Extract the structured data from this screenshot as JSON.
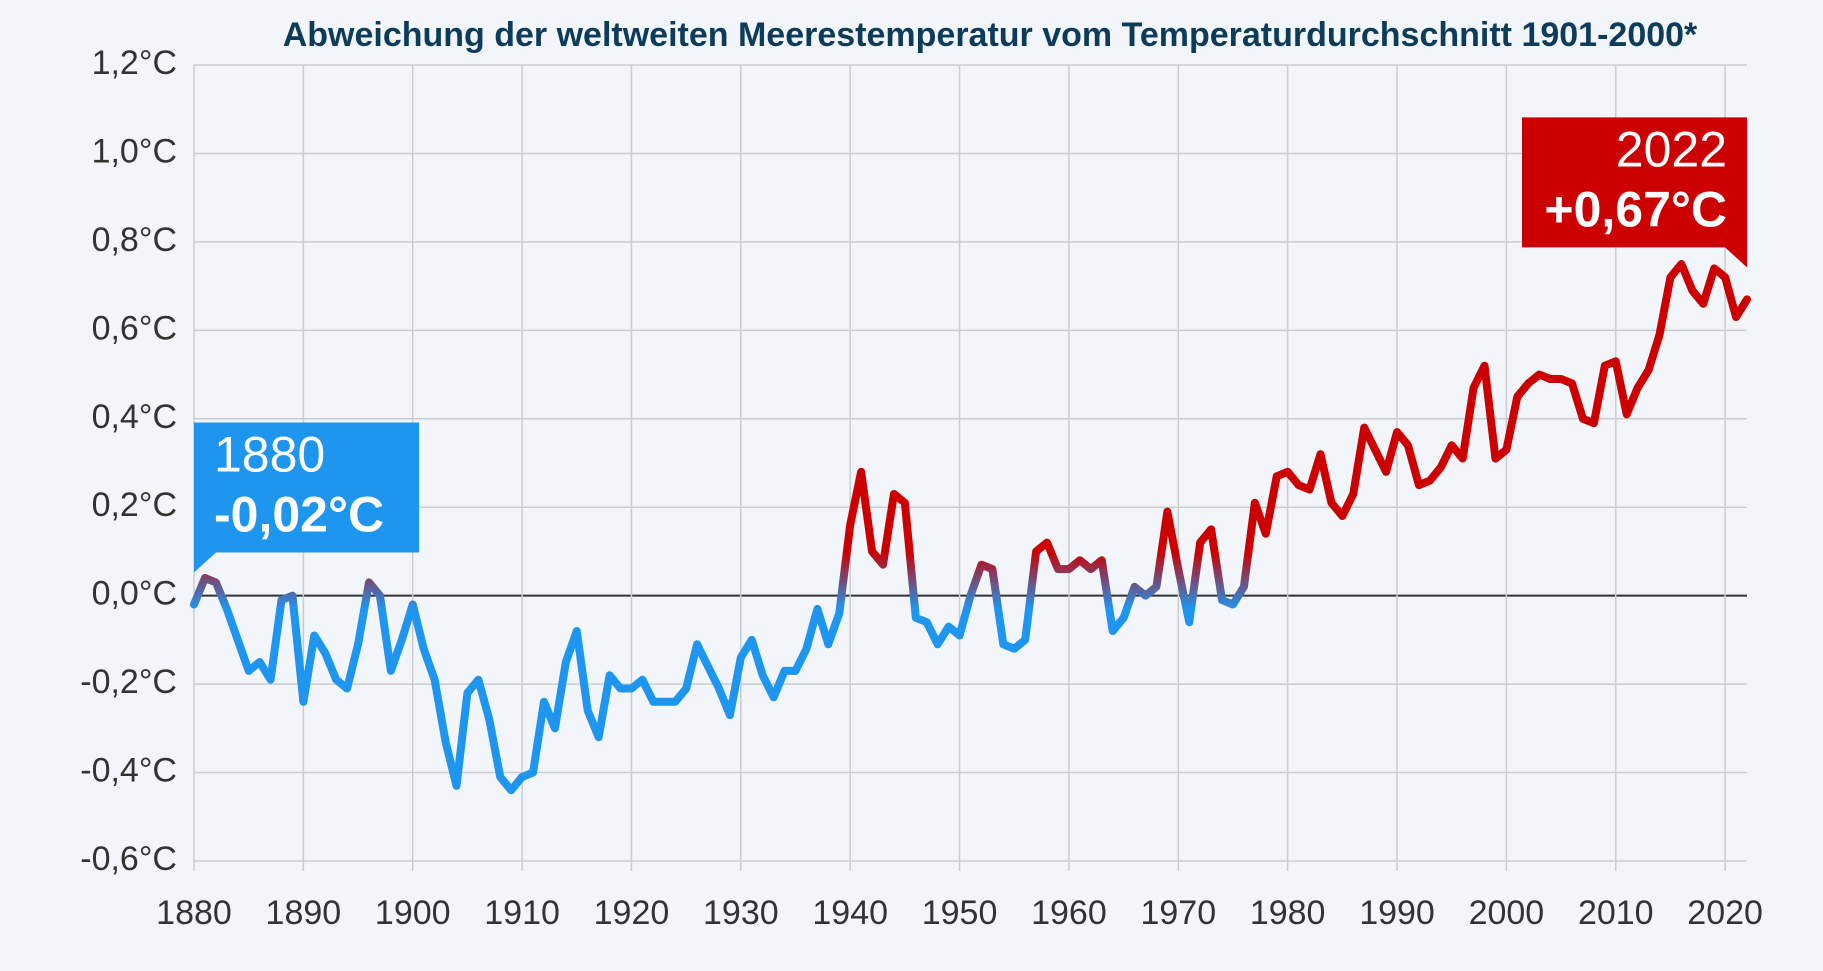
{
  "chart_data": {
    "type": "line",
    "title": "Abweichung der weltweiten Meerestemperatur vom Temperaturdurchschnitt 1901-2000*",
    "x": [
      1880,
      1881,
      1882,
      1883,
      1884,
      1885,
      1886,
      1887,
      1888,
      1889,
      1890,
      1891,
      1892,
      1893,
      1894,
      1895,
      1896,
      1897,
      1898,
      1899,
      1900,
      1901,
      1902,
      1903,
      1904,
      1905,
      1906,
      1907,
      1908,
      1909,
      1910,
      1911,
      1912,
      1913,
      1914,
      1915,
      1916,
      1917,
      1918,
      1919,
      1920,
      1921,
      1922,
      1923,
      1924,
      1925,
      1926,
      1927,
      1928,
      1929,
      1930,
      1931,
      1932,
      1933,
      1934,
      1935,
      1936,
      1937,
      1938,
      1939,
      1940,
      1941,
      1942,
      1943,
      1944,
      1945,
      1946,
      1947,
      1948,
      1949,
      1950,
      1951,
      1952,
      1953,
      1954,
      1955,
      1956,
      1957,
      1958,
      1959,
      1960,
      1961,
      1962,
      1963,
      1964,
      1965,
      1966,
      1967,
      1968,
      1969,
      1970,
      1971,
      1972,
      1973,
      1974,
      1975,
      1976,
      1977,
      1978,
      1979,
      1980,
      1981,
      1982,
      1983,
      1984,
      1985,
      1986,
      1987,
      1988,
      1989,
      1990,
      1991,
      1992,
      1993,
      1994,
      1995,
      1996,
      1997,
      1998,
      1999,
      2000,
      2001,
      2002,
      2003,
      2004,
      2005,
      2006,
      2007,
      2008,
      2009,
      2010,
      2011,
      2012,
      2013,
      2014,
      2015,
      2016,
      2017,
      2018,
      2019,
      2020,
      2021,
      2022
    ],
    "values": [
      -0.02,
      0.04,
      0.03,
      -0.03,
      -0.1,
      -0.17,
      -0.15,
      -0.19,
      -0.01,
      0.0,
      -0.24,
      -0.09,
      -0.13,
      -0.19,
      -0.21,
      -0.11,
      0.03,
      0.0,
      -0.17,
      -0.1,
      -0.02,
      -0.12,
      -0.19,
      -0.33,
      -0.43,
      -0.22,
      -0.19,
      -0.28,
      -0.41,
      -0.44,
      -0.41,
      -0.4,
      -0.24,
      -0.3,
      -0.15,
      -0.08,
      -0.26,
      -0.32,
      -0.18,
      -0.21,
      -0.21,
      -0.19,
      -0.24,
      -0.24,
      -0.24,
      -0.21,
      -0.11,
      -0.16,
      -0.21,
      -0.27,
      -0.14,
      -0.1,
      -0.18,
      -0.23,
      -0.17,
      -0.17,
      -0.12,
      -0.03,
      -0.11,
      -0.04,
      0.16,
      0.28,
      0.1,
      0.07,
      0.23,
      0.21,
      -0.05,
      -0.06,
      -0.11,
      -0.07,
      -0.09,
      0.0,
      0.07,
      0.06,
      -0.11,
      -0.12,
      -0.1,
      0.1,
      0.12,
      0.06,
      0.06,
      0.08,
      0.06,
      0.08,
      -0.08,
      -0.05,
      0.02,
      0.0,
      0.02,
      0.19,
      0.06,
      -0.06,
      0.12,
      0.15,
      -0.01,
      -0.02,
      0.02,
      0.21,
      0.14,
      0.27,
      0.28,
      0.25,
      0.24,
      0.32,
      0.21,
      0.18,
      0.23,
      0.38,
      0.33,
      0.28,
      0.37,
      0.34,
      0.25,
      0.26,
      0.29,
      0.34,
      0.31,
      0.47,
      0.52,
      0.31,
      0.33,
      0.45,
      0.48,
      0.5,
      0.49,
      0.49,
      0.48,
      0.4,
      0.39,
      0.52,
      0.53,
      0.41,
      0.47,
      0.51,
      0.59,
      0.72,
      0.75,
      0.69,
      0.66,
      0.74,
      0.72,
      0.63,
      0.67
    ],
    "value_labels": [
      "-0,02°C",
      null,
      null,
      null,
      null,
      null,
      null,
      null,
      null,
      null,
      null,
      null,
      null,
      null,
      null,
      null,
      null,
      null,
      null,
      null,
      null,
      null,
      null,
      null,
      null,
      null,
      null,
      null,
      null,
      null,
      null,
      null,
      null,
      null,
      null,
      null,
      null,
      null,
      null,
      null,
      null,
      null,
      null,
      null,
      null,
      null,
      null,
      null,
      null,
      null,
      null,
      null,
      null,
      null,
      null,
      null,
      null,
      null,
      null,
      null,
      null,
      null,
      null,
      null,
      null,
      null,
      null,
      null,
      null,
      null,
      null,
      null,
      null,
      null,
      null,
      null,
      null,
      null,
      null,
      null,
      null,
      null,
      null,
      null,
      null,
      null,
      null,
      null,
      null,
      null,
      null,
      null,
      null,
      null,
      null,
      null,
      null,
      null,
      null,
      null,
      null,
      null,
      null,
      null,
      null,
      null,
      null,
      null,
      null,
      null,
      null,
      null,
      null,
      null,
      null,
      null,
      null,
      null,
      null,
      null,
      null,
      null,
      null,
      null,
      null,
      null,
      null,
      null,
      null,
      null,
      null,
      null,
      null,
      null,
      null,
      null,
      null,
      null,
      null,
      null,
      null,
      null,
      "+0,67°C"
    ],
    "color_positive": "#cc0000",
    "color_negative": "#1e96f0",
    "xlim": [
      1880,
      2022
    ],
    "ylim": [
      -0.6,
      1.2
    ],
    "xticks": [
      1880,
      1890,
      1900,
      1910,
      1920,
      1930,
      1940,
      1950,
      1960,
      1970,
      1980,
      1990,
      2000,
      2010,
      2020
    ],
    "yticks": [
      {
        "value": -0.6,
        "label": "-0,6°C"
      },
      {
        "value": -0.4,
        "label": "-0,4°C"
      },
      {
        "value": -0.2,
        "label": "-0,2°C"
      },
      {
        "value": 0,
        "label": "0,0°C"
      },
      {
        "value": 0.2,
        "label": "0,2°C"
      },
      {
        "value": 0.4,
        "label": "0,4°C"
      },
      {
        "value": 0.6,
        "label": "0,6°C"
      },
      {
        "value": 0.8,
        "label": "0,8°C"
      },
      {
        "value": 1.0,
        "label": "1,0°C"
      },
      {
        "value": 1.2,
        "label": "1,2°C"
      }
    ],
    "grid": true
  }
}
